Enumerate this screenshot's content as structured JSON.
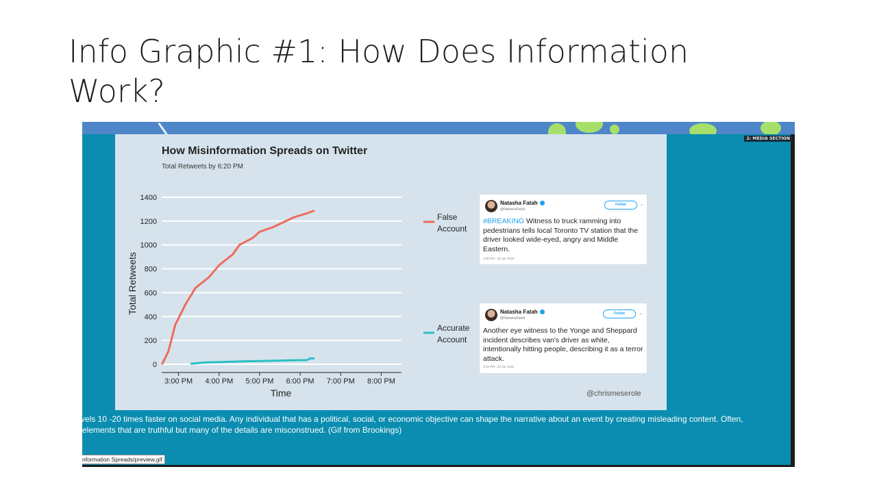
{
  "slide": {
    "title": "Info Graphic #1: How Does Information Work?"
  },
  "media_label": "2: MEDIA SECTION",
  "chart": {
    "title": "How Misinformation Spreads on Twitter",
    "subtitle": "Total Retweets by 6:20 PM",
    "watermark": "@chrismeserole"
  },
  "chart_data": {
    "type": "line",
    "title": "How Misinformation Spreads on Twitter",
    "subtitle": "Total Retweets by 6:20 PM",
    "xlabel": "Time",
    "ylabel": "Total Retweets",
    "x_ticks": [
      "3:00 PM",
      "4:00 PM",
      "5:00 PM",
      "6:00 PM",
      "7:00 PM",
      "8:00 PM"
    ],
    "y_ticks": [
      0,
      200,
      400,
      600,
      800,
      1000,
      1200,
      1400
    ],
    "ylim": [
      0,
      1400
    ],
    "grid": "horizontal",
    "legend_position": "right",
    "series": [
      {
        "name": "False Account",
        "color": "#ee6b5b",
        "points": [
          [
            "2:36 PM",
            5
          ],
          [
            "2:45 PM",
            110
          ],
          [
            "2:55 PM",
            330
          ],
          [
            "3:10 PM",
            500
          ],
          [
            "3:25 PM",
            640
          ],
          [
            "3:45 PM",
            730
          ],
          [
            "4:00 PM",
            830
          ],
          [
            "4:20 PM",
            920
          ],
          [
            "4:30 PM",
            1000
          ],
          [
            "4:50 PM",
            1060
          ],
          [
            "5:00 PM",
            1110
          ],
          [
            "5:20 PM",
            1150
          ],
          [
            "5:35 PM",
            1190
          ],
          [
            "5:50 PM",
            1230
          ],
          [
            "6:10 PM",
            1265
          ],
          [
            "6:20 PM",
            1285
          ]
        ]
      },
      {
        "name": "Accurate Account",
        "color": "#2abfc4",
        "points": [
          [
            "3:19 PM",
            5
          ],
          [
            "3:40 PM",
            15
          ],
          [
            "4:10 PM",
            20
          ],
          [
            "4:40 PM",
            25
          ],
          [
            "5:10 PM",
            28
          ],
          [
            "5:40 PM",
            32
          ],
          [
            "6:10 PM",
            35
          ],
          [
            "6:15 PM",
            50
          ],
          [
            "6:20 PM",
            48
          ]
        ]
      }
    ]
  },
  "tweets": [
    {
      "name": "Natasha Fatah",
      "handle": "@NatashaFatah",
      "follow_label": "Follow",
      "hashtag": "#BREAKING",
      "text": " Witness to truck ramming into pedestrians tells local Toronto TV station that the driver looked wide-eyed, angry and Middle Eastern.",
      "timestamp": "2:36 PM - 23 Apr 2018"
    },
    {
      "name": "Natasha Fatah",
      "handle": "@NatashaFatah",
      "follow_label": "Follow",
      "text": "Another eye witness to the Yonge and Sheppard incident describes van's driver as white, intentionally hitting people, describing it as a terror attack.",
      "timestamp": "3:19 PM - 23 Apr 2018"
    }
  ],
  "caption": {
    "line1": "vels 10 -20 times faster on social media. Any individual that has a political, social, or economic objective can shape the narrative about an event by creating misleading content. Often,",
    "line2": "elements that are truthful but many of the details are misconstrued. (Gif from Brookings)"
  },
  "file_path": "nformation Spreads/preview.gif"
}
